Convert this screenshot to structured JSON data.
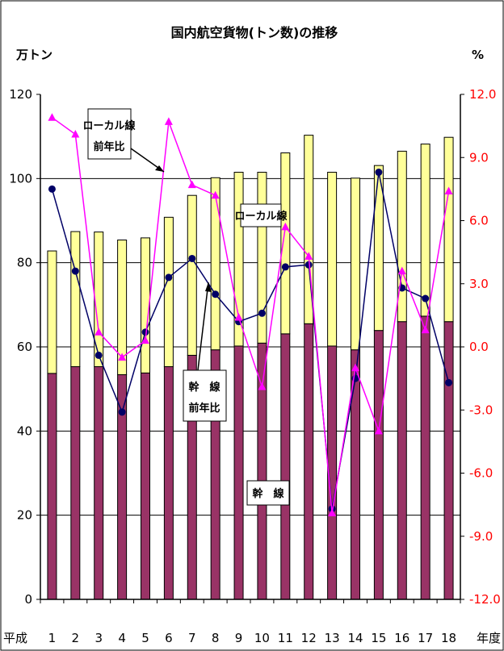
{
  "chart_data": {
    "type": "bar",
    "title": "国内航空貨物(トン数)の推移",
    "ylabel_left": "万トン",
    "ylabel_right": "%",
    "x_prefix": "平成",
    "x_suffix": "年度",
    "categories": [
      "1",
      "2",
      "3",
      "4",
      "5",
      "6",
      "7",
      "8",
      "9",
      "10",
      "11",
      "12",
      "13",
      "14",
      "15",
      "16",
      "17",
      "18"
    ],
    "ylim_left": [
      0,
      120
    ],
    "yticks_left": [
      "0",
      "20",
      "40",
      "60",
      "80",
      "100",
      "120"
    ],
    "ylim_right": [
      -12.0,
      12.0
    ],
    "yticks_right": [
      "-12.0",
      "-9.0",
      "-6.0",
      "-3.0",
      "0.0",
      "3.0",
      "6.0",
      "9.0",
      "12.0"
    ],
    "grid": "horizontal",
    "stacked_bars": [
      {
        "name": "幹　線",
        "color": "#993366",
        "values": [
          53.7,
          55.3,
          55.3,
          53.4,
          53.8,
          55.3,
          58.0,
          59.3,
          60.2,
          60.9,
          63.1,
          65.5,
          60.2,
          59.3,
          63.9,
          66.0,
          67.3,
          66.0
        ]
      },
      {
        "name": "ローカル線",
        "color": "#ffff99",
        "values": [
          29.1,
          32.1,
          32.0,
          32.0,
          32.1,
          35.5,
          38.0,
          40.9,
          41.3,
          40.6,
          43.0,
          44.8,
          41.3,
          40.8,
          39.2,
          40.5,
          40.9,
          43.8
        ]
      }
    ],
    "line_series": [
      {
        "name": "幹　線 前年比",
        "color": "#000066",
        "axis": "right",
        "values": [
          7.5,
          3.6,
          -0.4,
          -3.1,
          0.7,
          3.3,
          4.2,
          2.5,
          1.2,
          1.6,
          3.8,
          3.9,
          -7.7,
          -1.5,
          8.3,
          2.8,
          2.3,
          -1.7
        ]
      },
      {
        "name": "ローカル線 前年比",
        "color": "#ff00ff",
        "axis": "right",
        "values": [
          10.9,
          10.1,
          0.7,
          -0.5,
          0.3,
          10.7,
          7.7,
          7.2,
          1.4,
          -1.9,
          5.7,
          4.3,
          -7.9,
          -1.0,
          -4.0,
          3.6,
          0.8,
          7.4
        ]
      }
    ],
    "annotations": {
      "local_growth": [
        "ローカル線",
        "前年比"
      ],
      "trunk_growth": [
        "幹　線",
        "前年比"
      ],
      "local_bar": "ローカル線",
      "trunk_bar": "幹　線"
    }
  }
}
